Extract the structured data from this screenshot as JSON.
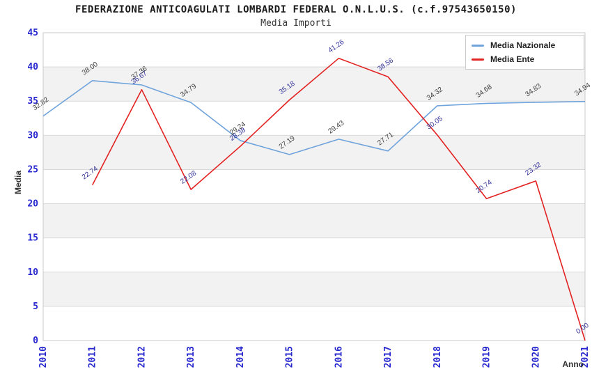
{
  "header": {
    "title": "FEDERAZIONE ANTICOAGULATI LOMBARDI FEDERAL O.N.L.U.S. (c.f.97543650150)",
    "subtitle": "Media Importi"
  },
  "chart_data": {
    "type": "line",
    "x": [
      2010,
      2011,
      2012,
      2013,
      2014,
      2015,
      2016,
      2017,
      2018,
      2019,
      2020,
      2021
    ],
    "series": [
      {
        "name": "Media Nazionale",
        "color": "#6fa3dc",
        "label_color": "#3d3d3d",
        "values": [
          32.82,
          38.0,
          37.36,
          34.79,
          29.24,
          27.19,
          29.43,
          27.71,
          34.32,
          34.68,
          34.83,
          34.94
        ]
      },
      {
        "name": "Media Ente",
        "color": "#e32222",
        "label_color": "#333399",
        "values": [
          null,
          22.74,
          36.67,
          22.08,
          28.38,
          35.18,
          41.26,
          38.56,
          30.05,
          20.74,
          23.32,
          0.0
        ]
      }
    ],
    "xlabel": "Anno",
    "ylabel": "Media",
    "ylim": [
      0,
      45
    ],
    "ytick_step": 5,
    "yticks": [
      0,
      5,
      10,
      15,
      20,
      25,
      30,
      35,
      40,
      45
    ],
    "legend_position": "top-right",
    "grid": "horizontal-bands",
    "band_color": "#f2f2f2",
    "gridline_color": "#d8d8d8",
    "border_color": "#c8c8c8",
    "tick_label_color": "#2727cf",
    "axis_title_color": "#333333"
  }
}
